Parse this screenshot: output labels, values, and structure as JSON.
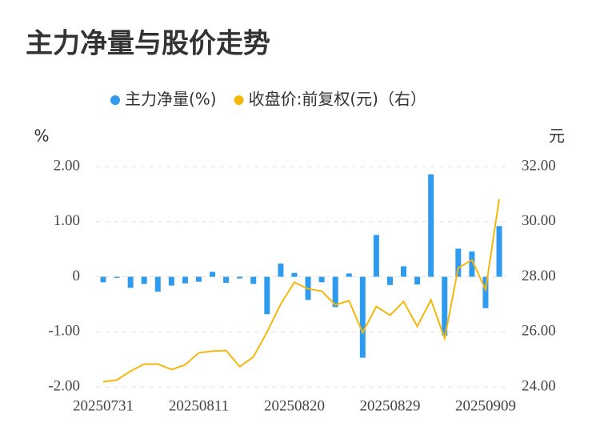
{
  "chart_data": {
    "type": "bar_line",
    "title": "主力净量与股价走势",
    "ylabel": "%",
    "y2label": "元",
    "categories": [
      "20250731",
      null,
      null,
      null,
      null,
      null,
      null,
      "20250811",
      null,
      null,
      null,
      null,
      null,
      null,
      "20250820",
      null,
      null,
      null,
      null,
      null,
      null,
      "20250829",
      null,
      null,
      null,
      null,
      null,
      null,
      "20250909",
      null
    ],
    "series": [
      {
        "name": "主力净量(%)",
        "type": "bar",
        "color": "#2f9bef",
        "values": [
          -0.1,
          -0.02,
          -0.2,
          -0.13,
          -0.27,
          -0.16,
          -0.12,
          -0.09,
          0.09,
          -0.11,
          -0.03,
          -0.13,
          -0.68,
          0.24,
          0.07,
          -0.42,
          -0.1,
          -0.55,
          0.06,
          -1.47,
          0.76,
          -0.15,
          0.19,
          -0.14,
          1.86,
          -1.07,
          0.51,
          0.46,
          -0.57,
          0.92
        ]
      },
      {
        "name": "收盘价:前复权(元)（右）",
        "type": "line",
        "axis": "y2",
        "color": "#f5b70e",
        "values": [
          24.19,
          24.25,
          24.57,
          24.83,
          24.83,
          24.63,
          24.8,
          25.24,
          25.3,
          25.32,
          24.74,
          25.09,
          25.99,
          27.01,
          27.8,
          27.56,
          27.48,
          26.98,
          27.13,
          25.97,
          26.92,
          26.6,
          27.1,
          26.2,
          27.16,
          25.76,
          28.32,
          28.61,
          27.53,
          30.82
        ]
      }
    ],
    "ylim": [
      -2,
      2
    ],
    "yticks": [
      {
        "value": 2,
        "label": "2.00"
      },
      {
        "value": 1,
        "label": "1.00"
      },
      0,
      {
        "value": -1,
        "label": "-1.00"
      },
      {
        "value": -2,
        "label": "-2.00"
      }
    ],
    "y2lim": [
      24,
      32
    ],
    "y2ticks": [
      {
        "value": 32,
        "label": "32.00"
      },
      {
        "value": 30,
        "label": "30.00"
      },
      {
        "value": 28,
        "label": "28.00"
      },
      {
        "value": 26,
        "label": "26.00"
      },
      {
        "value": 24,
        "label": "24.00"
      }
    ],
    "grid": true,
    "legend": "top"
  }
}
